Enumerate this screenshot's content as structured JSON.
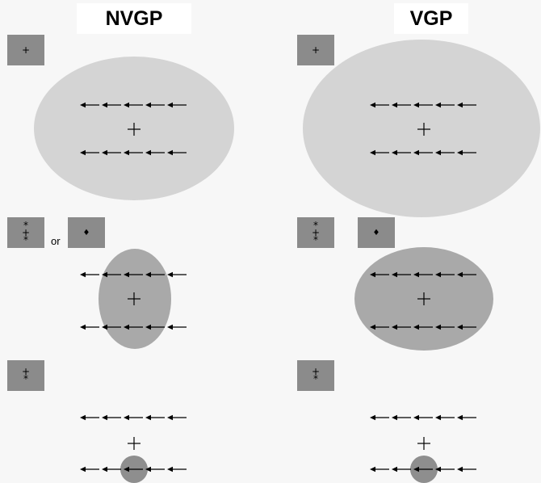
{
  "columns": {
    "left_title": "NVGP",
    "right_title": "VGP"
  },
  "or_label": "or",
  "glyphs": {
    "fixation": "+",
    "star": "*",
    "diamond": "♦"
  },
  "colors": {
    "background": "#f7f7f7",
    "title_background": "#ffffff",
    "cue_square": "#8b8b8b",
    "field_light": "#d4d4d4",
    "field_medium": "#a9a9a9",
    "field_dark": "#8e8e8e"
  }
}
